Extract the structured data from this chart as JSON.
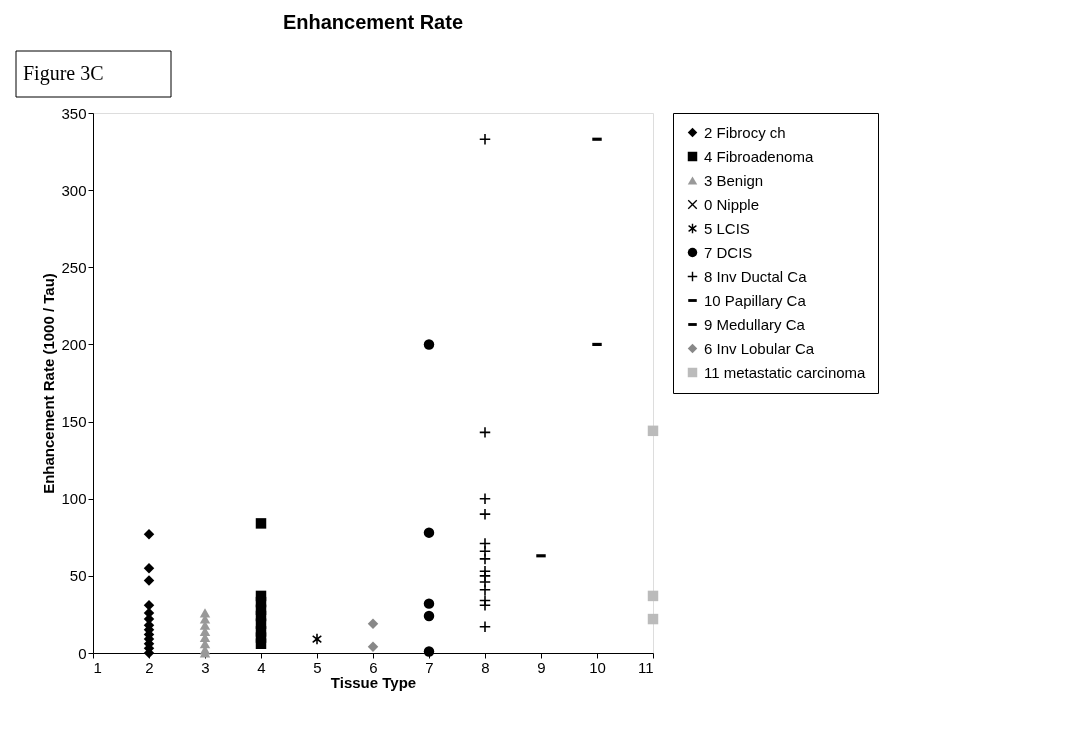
{
  "chart_data": {
    "type": "scatter",
    "title": "Enhancement Rate",
    "xlabel": "Tissue Type",
    "ylabel": "Enhancement Rate (1000 / Tau)",
    "annotations": [
      "Figure 3C"
    ],
    "xlim": [
      1,
      11
    ],
    "xticks": [
      1,
      2,
      3,
      4,
      5,
      6,
      7,
      8,
      9,
      10,
      11
    ],
    "ylim": [
      0,
      350
    ],
    "yticks": [
      0,
      50,
      100,
      150,
      200,
      250,
      300,
      350
    ],
    "grid": false,
    "legend": "right",
    "series": [
      {
        "name": "2 Fibrocy ch",
        "color": "#000000",
        "marker": "diamond",
        "x": [
          2,
          2,
          2,
          2,
          2,
          2,
          2,
          2,
          2,
          2,
          2,
          2,
          2
        ],
        "values": [
          77,
          55,
          47,
          31,
          26,
          22,
          18,
          15,
          12,
          9,
          6,
          3,
          0
        ]
      },
      {
        "name": "4 Fibroadenoma",
        "color": "#000000",
        "marker": "square",
        "x": [
          4,
          4,
          4,
          4,
          4,
          4,
          4,
          4,
          4
        ],
        "values": [
          84,
          37,
          33,
          28,
          24,
          19,
          14,
          10,
          6
        ]
      },
      {
        "name": "3 Benign",
        "color": "#999999",
        "marker": "triangle",
        "x": [
          3,
          3,
          3,
          3,
          3,
          3,
          3,
          3
        ],
        "values": [
          26,
          22,
          18,
          14,
          10,
          6,
          2,
          0
        ]
      },
      {
        "name": "0 Nipple",
        "color": "#000000",
        "marker": "x"
      },
      {
        "name": "5 LCIS",
        "color": "#000000",
        "marker": "star",
        "x": [
          5
        ],
        "values": [
          9
        ]
      },
      {
        "name": "7 DCIS",
        "color": "#000000",
        "marker": "circle",
        "x": [
          7,
          7,
          7,
          7,
          7
        ],
        "values": [
          200,
          78,
          32,
          24,
          1
        ]
      },
      {
        "name": "8 Inv Ductal Ca",
        "color": "#000000",
        "marker": "plus",
        "x": [
          8,
          8,
          8,
          8,
          8,
          8,
          8,
          8,
          8,
          8,
          8,
          8,
          8,
          8
        ],
        "values": [
          333,
          143,
          100,
          90,
          71,
          66,
          61,
          53,
          50,
          46,
          41,
          34,
          31,
          17
        ]
      },
      {
        "name": "10  Papillary Ca",
        "color": "#000000",
        "x": [
          10,
          10
        ],
        "values": [
          333,
          200
        ]
      },
      {
        "name": "9 Medullary Ca",
        "color": "#000000",
        "x": [
          9
        ],
        "values": [
          63
        ]
      },
      {
        "name": "6 Inv Lobular Ca",
        "color": "#888888",
        "marker": "diamond",
        "x": [
          6,
          6
        ],
        "values": [
          19,
          4
        ]
      },
      {
        "name": "11 metastatic carcinoma",
        "color": "#bbbbbb",
        "marker": "square",
        "x": [
          11,
          11,
          11
        ],
        "values": [
          144,
          37,
          22
        ]
      }
    ]
  }
}
